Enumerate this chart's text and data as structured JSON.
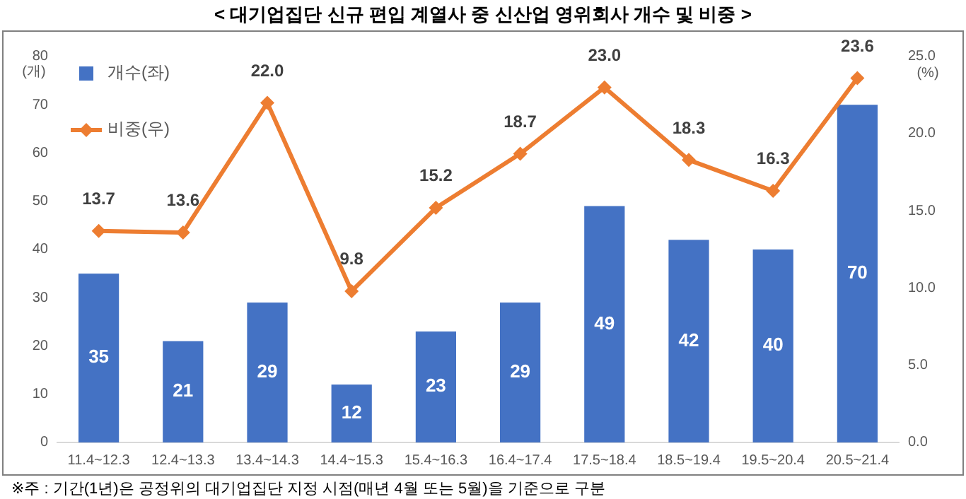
{
  "chart_data": {
    "type": "bar",
    "title": "< 대기업집단 신규 편입 계열사 중 신산업 영위회사 개수 및 비중 >",
    "ylabel": "(개)",
    "y2label": "(%)",
    "categories": [
      "11.4~12.3",
      "12.4~13.3",
      "13.4~14.3",
      "14.4~15.3",
      "15.4~16.3",
      "16.4~17.4",
      "17.5~18.4",
      "18.5~19.4",
      "19.5~20.4",
      "20.5~21.4"
    ],
    "series": [
      {
        "name": "개수(좌)",
        "color": "#4472c4",
        "values": [
          35,
          21,
          29,
          12,
          23,
          29,
          49,
          42,
          40,
          70
        ]
      },
      {
        "name": "비중(우)",
        "type": "line",
        "axis": "y2",
        "color": "#ed7d31",
        "marker": "diamond",
        "values": [
          13.7,
          13.6,
          22.0,
          9.8,
          15.2,
          18.7,
          23.0,
          18.3,
          16.3,
          23.6
        ],
        "value_labels": [
          "13.7",
          "13.6",
          "22.0",
          "9.8",
          "15.2",
          "18.7",
          "23.0",
          "18.3",
          "16.3",
          "23.6"
        ]
      }
    ],
    "ylim": [
      0,
      80
    ],
    "yticks": [
      0,
      10,
      20,
      30,
      40,
      50,
      60,
      70,
      80
    ],
    "y2lim": [
      0,
      25
    ],
    "y2ticks": [
      {
        "value": 0,
        "label": "0.0"
      },
      {
        "value": 5,
        "label": "5.0"
      },
      {
        "value": 10,
        "label": "10.0"
      },
      {
        "value": 15,
        "label": "15.0"
      },
      {
        "value": 20,
        "label": "20.0"
      },
      {
        "value": 25,
        "label": "25.0"
      }
    ],
    "data_labels": true,
    "grid": false,
    "legend": "top left",
    "annotations": [
      "※주 : 기간(1년)은 공정위의 대기업집단 지정 시점(매년 4월 또는 5월)을 기준으로 구분"
    ]
  }
}
